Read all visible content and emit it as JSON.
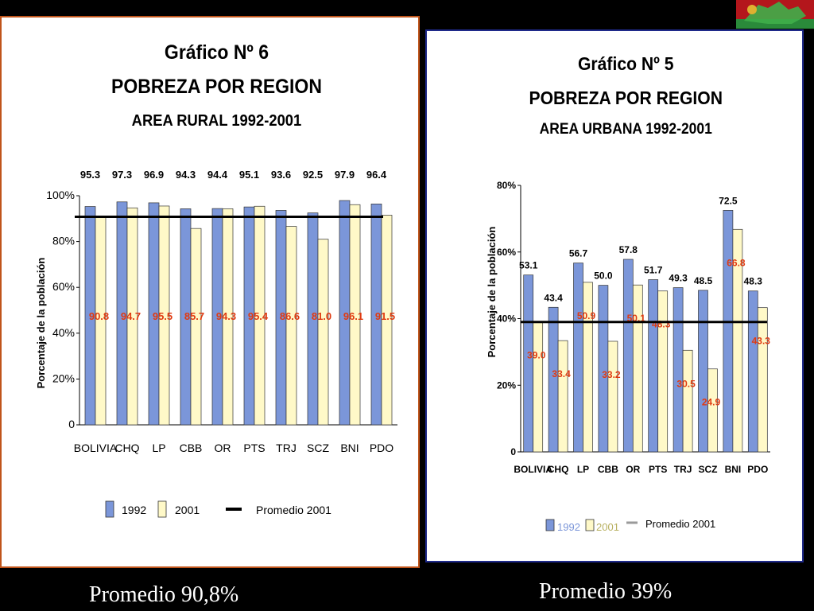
{
  "colors": {
    "background": "#000000",
    "panel": "#ffffff",
    "bar_1992": "#7b96d9",
    "bar_2001": "#fff9c8",
    "bar_stroke": "#333333",
    "value_2001_label": "#e03a10",
    "average_line": "#000000",
    "urban_average_legend": "#9a9a9a"
  },
  "logo": {
    "icon": "flag-emblem-icon"
  },
  "chart_data": [
    {
      "type": "bar",
      "title": "Gráfico Nº 6",
      "subtitle": "POBREZA POR REGION",
      "subtitle2": "AREA RURAL 1992-2001",
      "xlabel": "",
      "ylabel": "Porcentaje de la población",
      "categories": [
        "BOLIVIA",
        "CHQ",
        "LP",
        "CBB",
        "OR",
        "PTS",
        "TRJ",
        "SCZ",
        "BNI",
        "PDO"
      ],
      "series": [
        {
          "name": "1992",
          "values": [
            95.3,
            97.3,
            96.9,
            94.3,
            94.4,
            95.1,
            93.6,
            92.5,
            97.9,
            96.4
          ]
        },
        {
          "name": "2001",
          "values": [
            90.8,
            94.7,
            95.5,
            85.7,
            94.3,
            95.4,
            86.6,
            81.0,
            96.1,
            91.5
          ]
        }
      ],
      "labels_1992": [
        "95.3",
        "97.3",
        "96.9",
        "94.3",
        "94.4",
        "95.1",
        "93.6",
        "92.5",
        "97.9",
        "96.4"
      ],
      "labels_2001": [
        "90.8",
        "94.7",
        "95.5",
        "85.7",
        "94.3",
        "95.4",
        "86.6",
        "81.0",
        "96.1",
        "91.5"
      ],
      "average_line": {
        "name": "Promedio 2001",
        "value": 90.8
      },
      "yticks": [
        "0",
        "20%",
        "40%",
        "60%",
        "80%",
        "100%"
      ],
      "ylim": [
        0,
        100
      ],
      "grid": false,
      "legend": {
        "placement": "bottom",
        "items": [
          "1992",
          "2001",
          "Promedio 2001"
        ]
      }
    },
    {
      "type": "bar",
      "title": "Gráfico Nº 5",
      "subtitle": "POBREZA POR REGION",
      "subtitle2": "AREA URBANA 1992-2001",
      "xlabel": "",
      "ylabel": "Porcentaje de la población",
      "categories": [
        "BOLIVIA",
        "CHQ",
        "LP",
        "CBB",
        "OR",
        "PTS",
        "TRJ",
        "SCZ",
        "BNI",
        "PDO"
      ],
      "series": [
        {
          "name": "1992",
          "values": [
            53.1,
            43.4,
            56.7,
            50.0,
            57.8,
            51.7,
            49.3,
            48.5,
            72.5,
            48.3
          ]
        },
        {
          "name": "2001",
          "values": [
            39.0,
            33.4,
            50.9,
            33.2,
            50.1,
            48.3,
            30.5,
            24.9,
            66.8,
            43.3
          ]
        }
      ],
      "labels_1992": [
        "53.1",
        "43.4",
        "56.7",
        "50.0",
        "57.8",
        "51.7",
        "49.3",
        "48.5",
        "72.5",
        "48.3"
      ],
      "labels_2001": [
        "39.0",
        "33.4",
        "50.9",
        "33.2",
        "50.1",
        "48.3",
        "30.5",
        "24.9",
        "66.8",
        "43.3"
      ],
      "average_line": {
        "name": "Promedio 2001",
        "value": 39.0
      },
      "yticks": [
        "0",
        "20%",
        "40%",
        "60%",
        "80%"
      ],
      "ylim": [
        0,
        80
      ],
      "grid": false,
      "legend": {
        "placement": "bottom",
        "items": [
          "1992",
          "2001",
          "Promedio 2001"
        ]
      }
    }
  ],
  "captions": {
    "rural": "Promedio 90,8%",
    "urban": "Promedio 39%"
  }
}
